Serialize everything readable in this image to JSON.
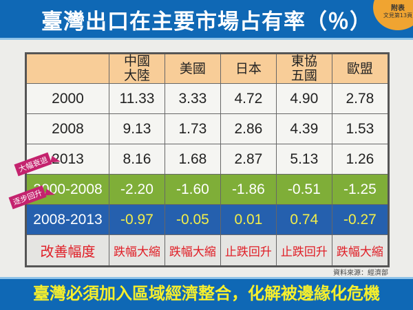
{
  "title": "臺灣出口在主要市場占有率（％）",
  "badge": {
    "line1": "附表",
    "line2": "文見第13頁"
  },
  "chart_data": {
    "type": "table",
    "columns": [
      "",
      "中國大陸",
      "美國",
      "日本",
      "東協五國",
      "歐盟"
    ],
    "column_lines": [
      [
        "",
        ""
      ],
      [
        "中國",
        "大陸"
      ],
      [
        "美國",
        ""
      ],
      [
        "日本",
        ""
      ],
      [
        "東協",
        "五國"
      ],
      [
        "歐盟",
        ""
      ]
    ],
    "rows": [
      {
        "label": "2000",
        "values": [
          "11.33",
          "3.33",
          "4.72",
          "4.90",
          "2.78"
        ]
      },
      {
        "label": "2008",
        "values": [
          "9.13",
          "1.73",
          "2.86",
          "4.39",
          "1.53"
        ]
      },
      {
        "label": "2013",
        "values": [
          "8.16",
          "1.68",
          "2.87",
          "5.13",
          "1.26"
        ]
      },
      {
        "label": "2000-2008",
        "values": [
          "-2.20",
          "-1.60",
          "-1.86",
          "-0.51",
          "-1.25"
        ]
      },
      {
        "label": "2008-2013",
        "values": [
          "-0.97",
          "-0.05",
          "0.01",
          "0.74",
          "-0.27"
        ]
      },
      {
        "label": "改善幅度",
        "values": [
          "跌幅大縮",
          "跌幅大縮",
          "止跌回升",
          "止跌回升",
          "跌幅大縮"
        ]
      }
    ],
    "annotations": [
      "大幅衰退",
      "逐步回升"
    ]
  },
  "source": "資料來源：經濟部",
  "footer": "臺灣必須加入區域經濟整合，化解被邊緣化危機",
  "colors": {
    "header_blue": "#0f68b5",
    "header_row": "#f8cd98",
    "green_row": "#7fae38",
    "blue_row": "#2560ae",
    "highlight_yellow": "#f3ee4a",
    "red_text": "#e01d25",
    "tag": "#c4236e"
  }
}
